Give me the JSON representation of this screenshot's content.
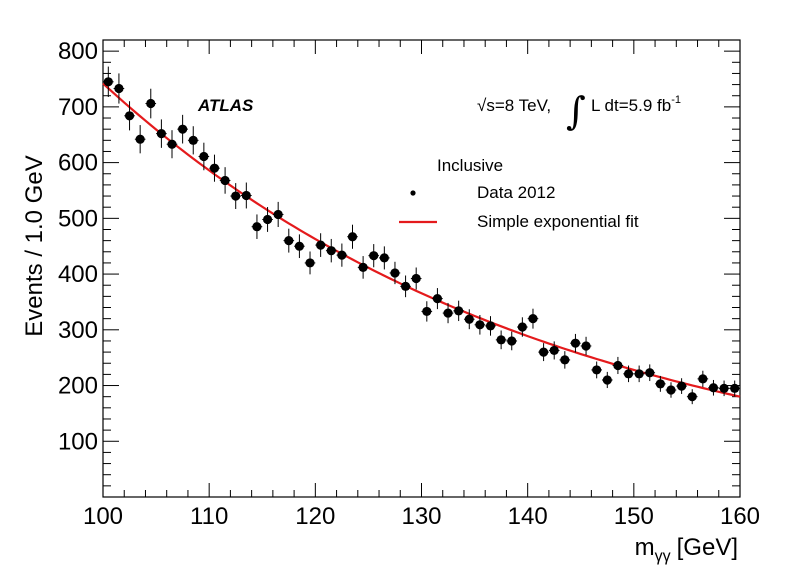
{
  "chart_data": {
    "type": "scatter",
    "title": "",
    "xlabel": "m",
    "xlabel_sub": "γγ",
    "xlabel_unit": "[GeV]",
    "ylabel": "Events /  1.0 GeV",
    "xlim": [
      100,
      160
    ],
    "ylim": [
      0,
      820
    ],
    "xticks": [
      100,
      110,
      120,
      130,
      140,
      150,
      160
    ],
    "yticks": [
      100,
      200,
      300,
      400,
      500,
      600,
      700,
      800
    ],
    "experiment_label": "ATLAS",
    "energy_label": "√s=8 TeV,",
    "lumi_label": "L dt=5.9 fb",
    "lumi_exponent": "-1",
    "integral_symbol": "∫",
    "legend": {
      "header": "Inclusive",
      "entries": [
        {
          "label": "Data 2012",
          "kind": "marker"
        },
        {
          "label": "Simple exponential fit",
          "kind": "line",
          "color": "#e41a1c"
        }
      ]
    },
    "fit": {
      "form": "A*exp(-b*(x-100))",
      "A": 742,
      "b": 0.0236,
      "color": "#e41a1c"
    },
    "series": [
      {
        "name": "Data 2012",
        "x": [
          100.5,
          101.5,
          102.5,
          103.5,
          104.5,
          105.5,
          106.5,
          107.5,
          108.5,
          109.5,
          110.5,
          111.5,
          112.5,
          113.5,
          114.5,
          115.5,
          116.5,
          117.5,
          118.5,
          119.5,
          120.5,
          121.5,
          122.5,
          123.5,
          124.5,
          125.5,
          126.5,
          127.5,
          128.5,
          129.5,
          130.5,
          131.5,
          132.5,
          133.5,
          134.5,
          135.5,
          136.5,
          137.5,
          138.5,
          139.5,
          140.5,
          141.5,
          142.5,
          143.5,
          144.5,
          145.5,
          146.5,
          147.5,
          148.5,
          149.5,
          150.5,
          151.5,
          152.5,
          153.5,
          154.5,
          155.5,
          156.5,
          157.5,
          158.5,
          159.5
        ],
        "y": [
          745,
          733,
          684,
          642,
          706,
          652,
          633,
          660,
          640,
          611,
          590,
          568,
          540,
          541,
          485,
          498,
          507,
          460,
          450,
          420,
          452,
          442,
          434,
          467,
          412,
          433,
          429,
          402,
          378,
          392,
          333,
          356,
          330,
          334,
          319,
          309,
          307,
          282,
          280,
          305,
          320,
          260,
          263,
          246,
          276,
          271,
          228,
          210,
          236,
          221,
          221,
          223,
          203,
          192,
          199,
          180,
          212,
          196,
          195,
          195
        ]
      }
    ]
  }
}
